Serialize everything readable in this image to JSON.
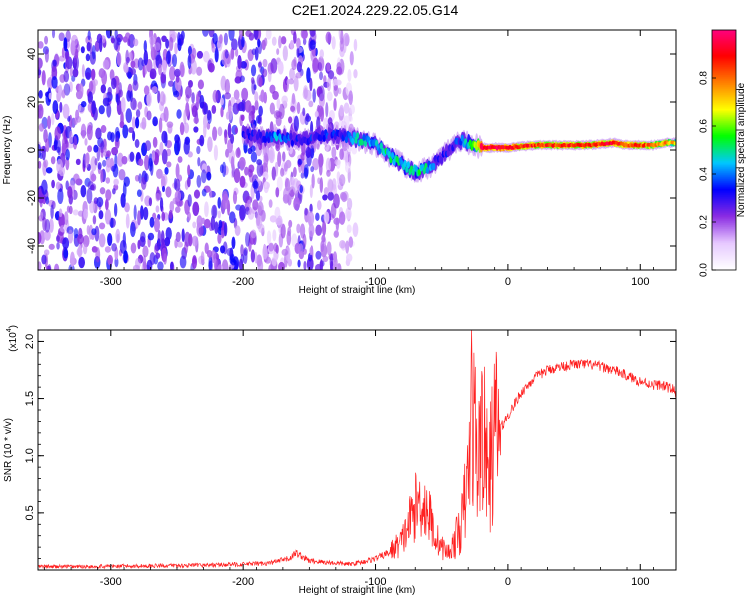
{
  "title": "C2E1.2024.229.22.05.G14",
  "chart_data": [
    {
      "type": "heatmap",
      "title": "C2E1.2024.229.22.05.G14",
      "xlabel": "Height of straight line (km)",
      "ylabel": "Frequency (Hz)",
      "xlim": [
        -355,
        127
      ],
      "ylim": [
        -50,
        50
      ],
      "x_ticks": [
        -300,
        -200,
        -100,
        0,
        100
      ],
      "x_tick_labels": [
        "-300",
        "-200",
        "-100",
        "0",
        "100"
      ],
      "y_ticks": [
        -40,
        -20,
        0,
        20,
        40
      ],
      "y_tick_labels": [
        "-40",
        "-20",
        "0",
        "20",
        "40"
      ],
      "colorbar": {
        "label": "Normalized spectral amplitude",
        "range": [
          0,
          1
        ],
        "ticks": [
          0.0,
          0.2,
          0.4,
          0.6,
          0.8
        ],
        "tick_labels": [
          "0.0",
          "0.2",
          "0.4",
          "0.6",
          "0.8"
        ],
        "colors": [
          "#ffffff",
          "#e6c8ff",
          "#8a2be2",
          "#0000ff",
          "#00c8ff",
          "#00ff00",
          "#ffff00",
          "#ff8000",
          "#ff0000",
          "#ff0080"
        ]
      },
      "ridge_line": {
        "x": [
          -200,
          -180,
          -175,
          -160,
          -140,
          -125,
          -110,
          -100,
          -90,
          -80,
          -70,
          -62,
          -55,
          -50,
          -45,
          -40,
          -35,
          -30,
          -25,
          -20,
          -10,
          0,
          20,
          40,
          60,
          80,
          90,
          100,
          110,
          120,
          127
        ],
        "y": [
          7,
          5,
          6,
          4,
          6,
          6,
          4,
          2,
          -2,
          -6,
          -9,
          -8,
          -5,
          -3,
          0,
          2,
          4,
          3,
          2,
          1,
          1,
          1,
          2,
          2,
          2,
          3,
          2,
          2,
          2,
          3,
          3
        ],
        "amplitude": [
          0.25,
          0.35,
          0.4,
          0.3,
          0.3,
          0.35,
          0.45,
          0.45,
          0.5,
          0.45,
          0.5,
          0.45,
          0.35,
          0.3,
          0.3,
          0.3,
          0.35,
          0.45,
          0.55,
          0.9,
          0.95,
          0.9,
          0.85,
          0.85,
          0.85,
          0.9,
          0.85,
          0.85,
          0.8,
          0.75,
          0.7
        ]
      },
      "noise_region": {
        "x_range": [
          -355,
          -115
        ],
        "y_range": [
          -50,
          50
        ]
      }
    },
    {
      "type": "line",
      "xlabel": "Height of straight line (km)",
      "ylabel": "SNR (10 * v/v)",
      "y_scale_label": "(x10",
      "y_scale_exponent": "4",
      "y_scale_suffix": ")",
      "xlim": [
        -355,
        127
      ],
      "ylim": [
        0,
        2.1
      ],
      "x_ticks": [
        -300,
        -200,
        -100,
        0,
        100
      ],
      "x_tick_labels": [
        "-300",
        "-200",
        "-100",
        "0",
        "100"
      ],
      "y_ticks": [
        0.5,
        1.0,
        1.5,
        2.0
      ],
      "y_tick_labels": [
        "0.5",
        "1.0",
        "1.5",
        "2.0"
      ],
      "series": [
        {
          "name": "SNR",
          "color": "#ff2020",
          "x": [
            -355,
            -320,
            -280,
            -240,
            -200,
            -180,
            -165,
            -160,
            -150,
            -130,
            -120,
            -110,
            -100,
            -90,
            -80,
            -75,
            -70,
            -65,
            -60,
            -55,
            -50,
            -45,
            -40,
            -35,
            -30,
            -27,
            -25,
            -22,
            -20,
            -17,
            -15,
            -12,
            -10,
            -5,
            0,
            10,
            20,
            30,
            40,
            50,
            60,
            70,
            80,
            90,
            100,
            110,
            115,
            120,
            125,
            127
          ],
          "y": [
            0.03,
            0.03,
            0.035,
            0.04,
            0.05,
            0.06,
            0.1,
            0.15,
            0.08,
            0.06,
            0.05,
            0.07,
            0.1,
            0.15,
            0.25,
            0.4,
            0.55,
            0.6,
            0.5,
            0.3,
            0.2,
            0.15,
            0.25,
            0.4,
            0.8,
            1.5,
            1.2,
            0.9,
            1.4,
            1.0,
            0.8,
            1.0,
            1.2,
            1.25,
            1.35,
            1.55,
            1.68,
            1.75,
            1.78,
            1.8,
            1.8,
            1.78,
            1.75,
            1.7,
            1.65,
            1.62,
            1.62,
            1.6,
            1.58,
            1.55
          ]
        }
      ]
    }
  ]
}
